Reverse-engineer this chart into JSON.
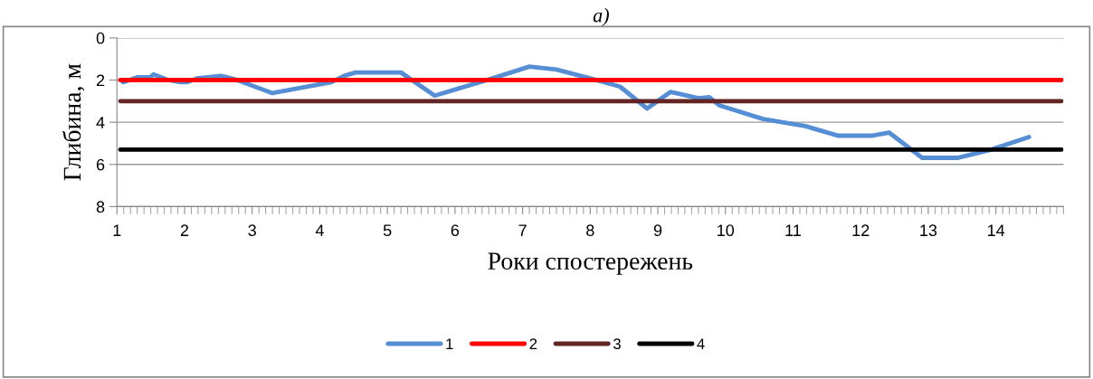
{
  "chart_data": {
    "type": "line",
    "title": "а)",
    "xlabel": "Роки спостережень",
    "ylabel": "Глибина, м",
    "xlim": [
      1,
      15
    ],
    "xticks": [
      1,
      2,
      3,
      4,
      5,
      6,
      7,
      8,
      9,
      10,
      11,
      12,
      13,
      14
    ],
    "ylim": [
      8,
      0
    ],
    "yticks": [
      0,
      2,
      4,
      6,
      8
    ],
    "grid": "y",
    "legend": "bottom",
    "marker": "none",
    "line_style": "solid",
    "series": [
      {
        "name": "1",
        "color": "#558ed5",
        "x": [
          1.09,
          1.3,
          1.49,
          1.54,
          1.63,
          1.73,
          1.94,
          2.04,
          2.18,
          2.54,
          2.75,
          3.3,
          4.17,
          4.36,
          4.53,
          5.2,
          5.7,
          6.5,
          7.1,
          7.5,
          8.0,
          8.44,
          8.84,
          9.19,
          9.6,
          9.76,
          9.91,
          10.56,
          11.18,
          11.67,
          12.16,
          12.42,
          12.91,
          13.43,
          13.92,
          14.49
        ],
        "values": [
          2.1,
          1.87,
          1.87,
          1.73,
          1.84,
          1.97,
          2.1,
          2.1,
          1.92,
          1.8,
          1.97,
          2.62,
          2.1,
          1.8,
          1.64,
          1.64,
          2.74,
          1.97,
          1.36,
          1.5,
          1.92,
          2.31,
          3.35,
          2.56,
          2.86,
          2.81,
          3.2,
          3.85,
          4.18,
          4.64,
          4.64,
          4.49,
          5.69,
          5.69,
          5.31,
          4.7
        ]
      },
      {
        "name": "2",
        "color": "#ff0000",
        "x": [
          1.05,
          14.97
        ],
        "values": [
          2,
          2
        ]
      },
      {
        "name": "3",
        "color": "#632523",
        "x": [
          1.05,
          14.97
        ],
        "values": [
          3,
          3
        ]
      },
      {
        "name": "4",
        "color": "#000000",
        "x": [
          1.05,
          14.97
        ],
        "values": [
          5.3,
          5.3
        ]
      }
    ]
  }
}
